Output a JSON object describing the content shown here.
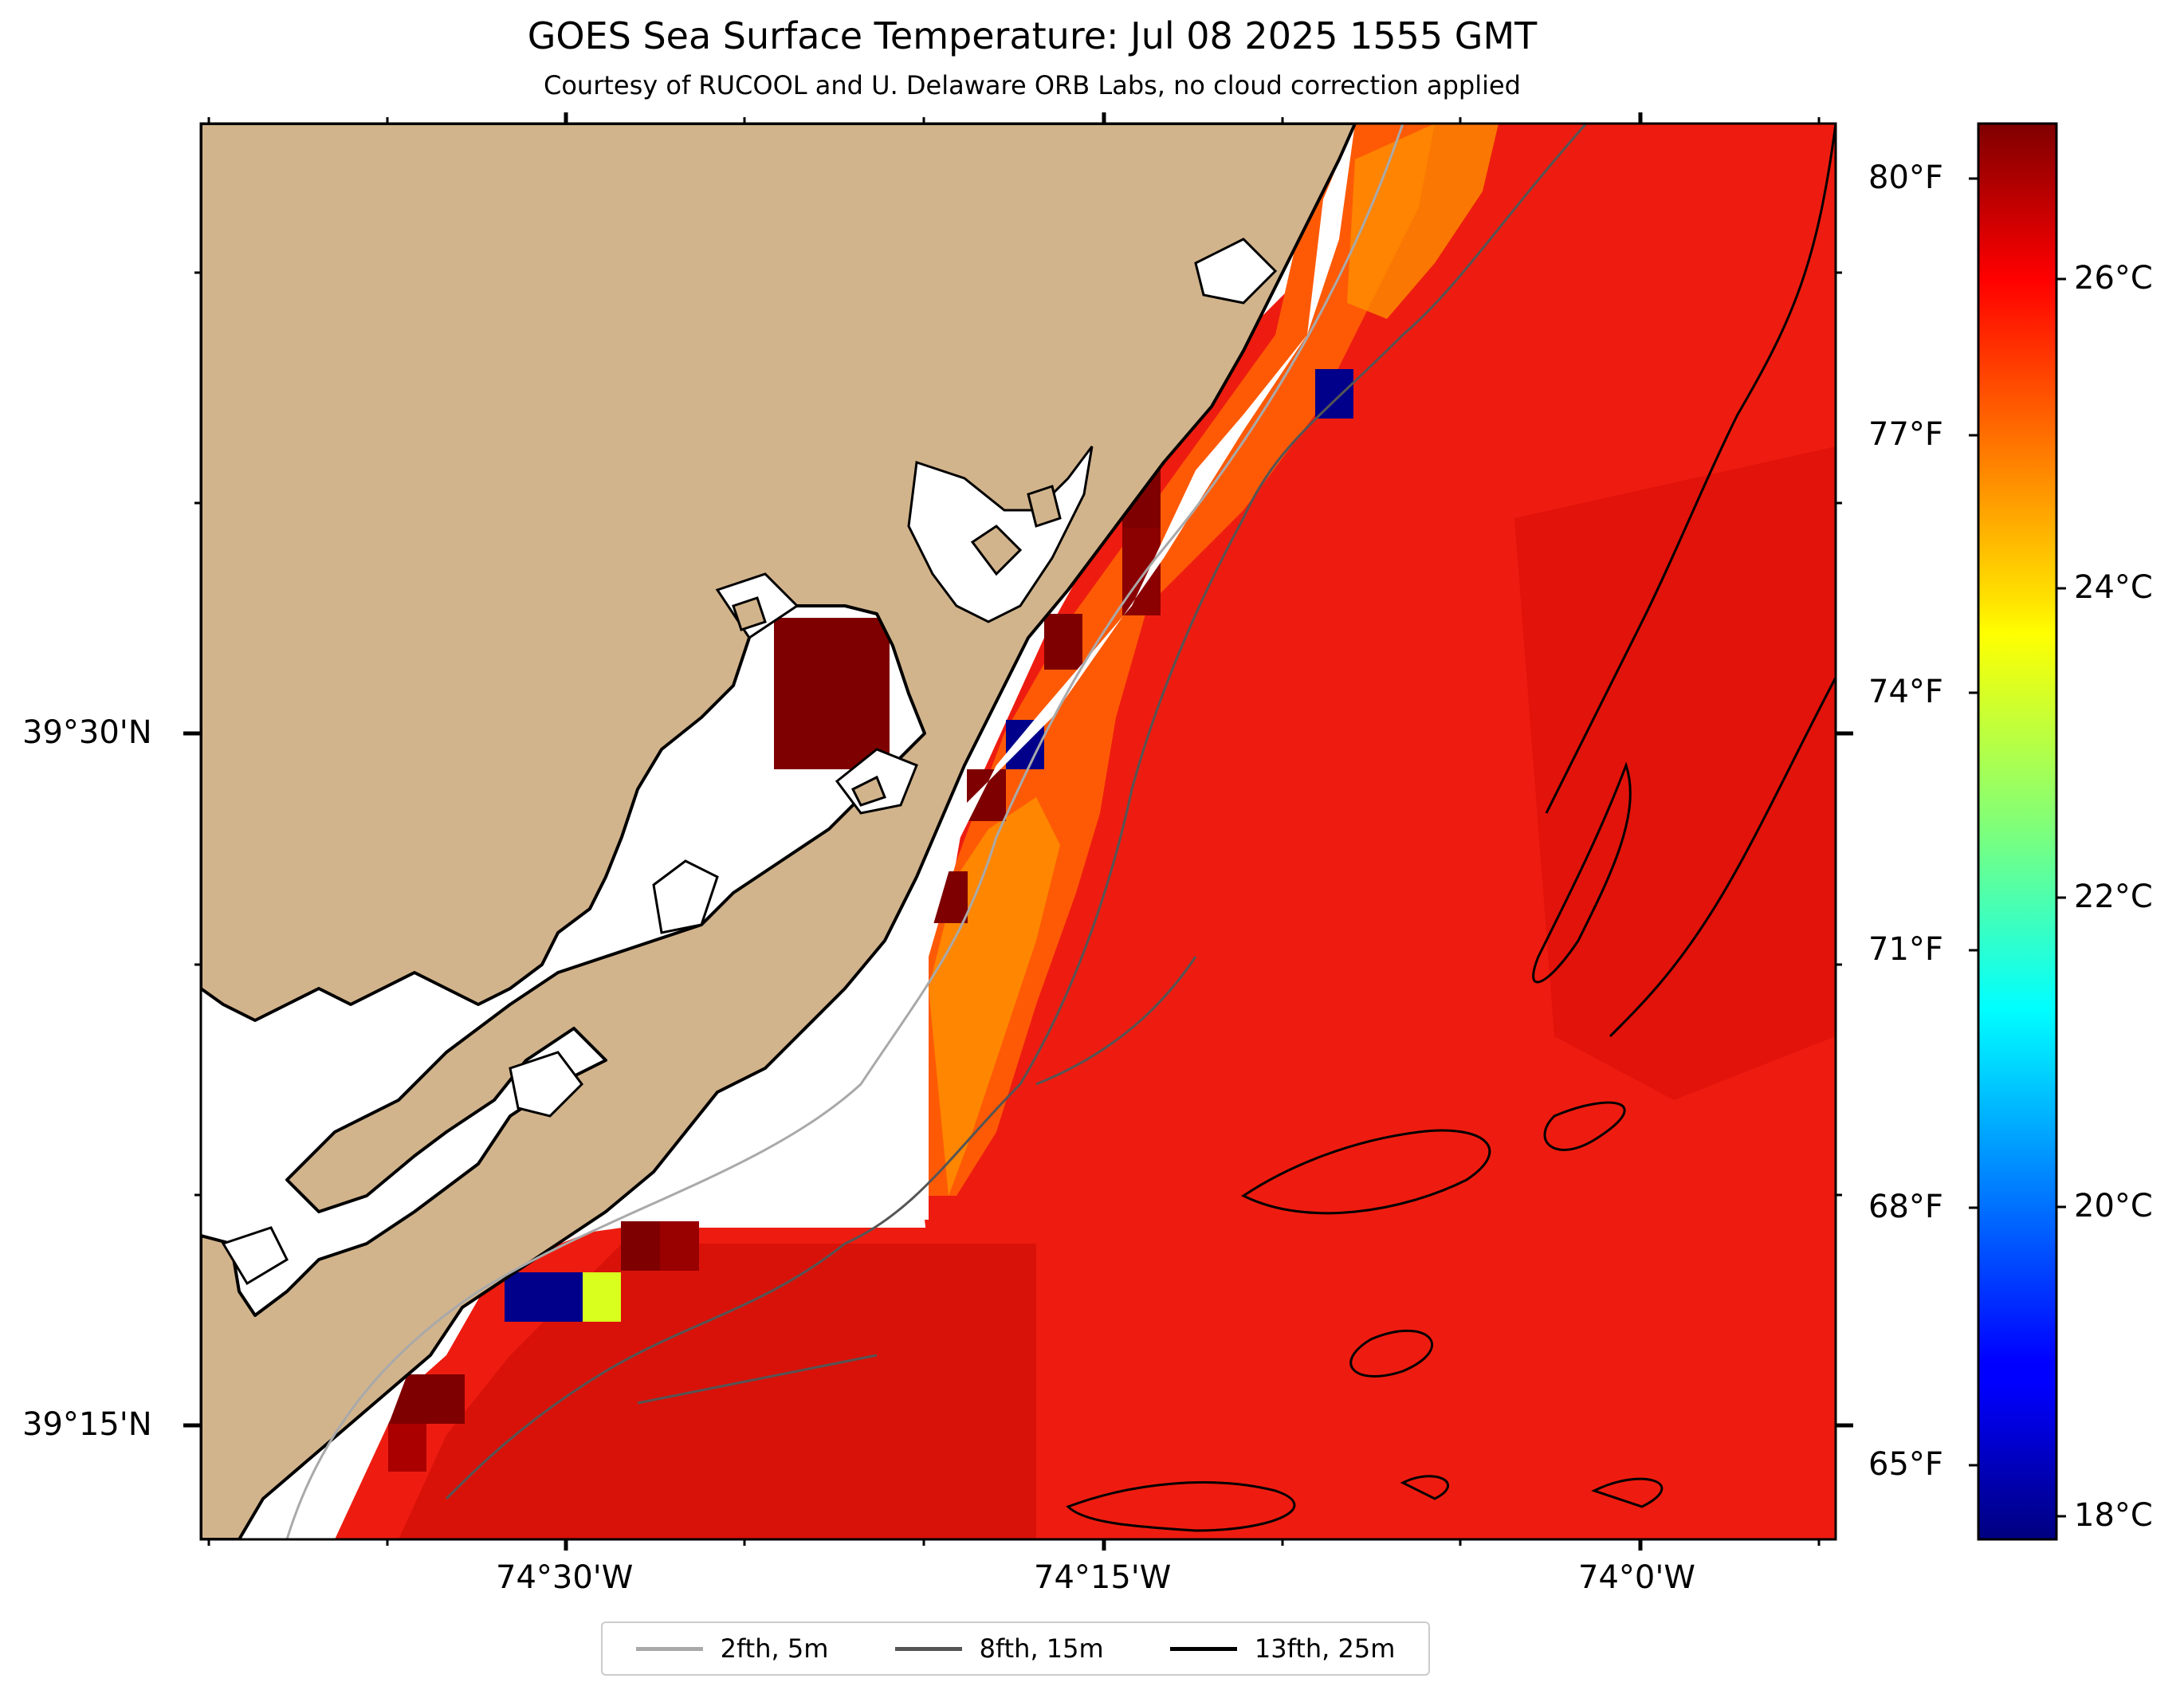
{
  "title": "GOES Sea Surface Temperature: Jul 08 2025 1555 GMT",
  "subtitle": "Courtesy of RUCOOL and U. Delaware ORB Labs, no cloud correction applied",
  "map": {
    "colors": {
      "land": "#d2b48c",
      "coastline": "#000000",
      "no_data": "#ffffff"
    },
    "lon_labels": [
      "74°30'W",
      "74°15'W",
      "74°0'W"
    ],
    "lat_labels": [
      "39°30'N",
      "39°15'N"
    ]
  },
  "legend": {
    "items": [
      {
        "label": "2fth, 5m",
        "color": "#a9a9a9"
      },
      {
        "label": "8fth, 15m",
        "color": "#555555"
      },
      {
        "label": "13fth, 25m",
        "color": "#000000"
      }
    ]
  },
  "colorbar": {
    "colormap": "jet",
    "range_c": [
      17.6,
      27.6
    ],
    "celsius_labels": [
      "26°C",
      "24°C",
      "22°C",
      "20°C",
      "18°C"
    ],
    "fahrenheit_labels": [
      "80°F",
      "77°F",
      "74°F",
      "71°F",
      "68°F",
      "65°F"
    ]
  }
}
